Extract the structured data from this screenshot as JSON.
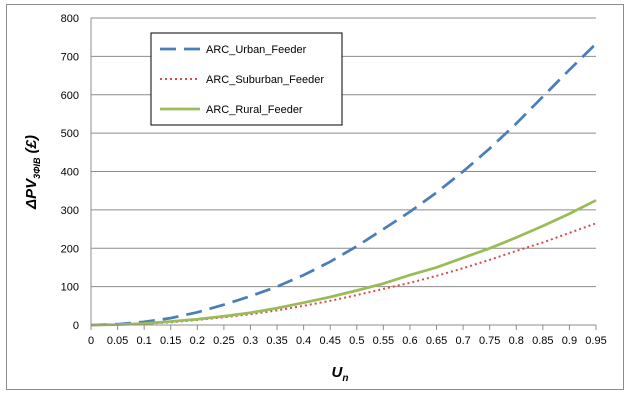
{
  "chart_data": {
    "type": "line",
    "x_ticks": [
      "0",
      "0.05",
      "0.1",
      "0.15",
      "0.2",
      "0.25",
      "0.3",
      "0.35",
      "0.4",
      "0.45",
      "0.5",
      "0.55",
      "0.6",
      "0.65",
      "0.7",
      "0.75",
      "0.8",
      "0.85",
      "0.9",
      "0.95"
    ],
    "y_ticks": [
      "0",
      "100",
      "200",
      "300",
      "400",
      "500",
      "600",
      "700",
      "800"
    ],
    "xlim": [
      0,
      0.95
    ],
    "ylim": [
      0,
      800
    ],
    "grid": "horizontal",
    "legend_position": "top-left",
    "xlabel": "U",
    "xlabel_sub": "n",
    "ylabel_prefix": "ΔPV",
    "ylabel_sub": "3ΦIB",
    "ylabel_suffix": " (£)",
    "series": [
      {
        "name": "ARC_Urban_Feeder",
        "color": "#4a7ebb",
        "style": "dashed",
        "x": [
          0,
          0.05,
          0.1,
          0.15,
          0.2,
          0.25,
          0.3,
          0.35,
          0.4,
          0.45,
          0.5,
          0.55,
          0.6,
          0.65,
          0.7,
          0.75,
          0.8,
          0.85,
          0.9,
          0.95
        ],
        "y": [
          0,
          2,
          8,
          18,
          33,
          53,
          75,
          100,
          130,
          165,
          205,
          250,
          295,
          345,
          400,
          460,
          525,
          595,
          665,
          733
        ]
      },
      {
        "name": "ARC_Suburban_Feeder",
        "color": "#d84b4b",
        "style": "dotted",
        "x": [
          0,
          0.05,
          0.1,
          0.15,
          0.2,
          0.25,
          0.3,
          0.35,
          0.4,
          0.45,
          0.5,
          0.55,
          0.6,
          0.65,
          0.7,
          0.75,
          0.8,
          0.85,
          0.9,
          0.95
        ],
        "y": [
          0,
          1,
          3,
          7,
          13,
          20,
          28,
          38,
          50,
          63,
          78,
          94,
          110,
          128,
          148,
          170,
          193,
          215,
          240,
          265
        ]
      },
      {
        "name": "ARC_Rural_Feeder",
        "color": "#9bbb59",
        "style": "solid",
        "x": [
          0,
          0.05,
          0.1,
          0.15,
          0.2,
          0.25,
          0.3,
          0.35,
          0.4,
          0.45,
          0.5,
          0.55,
          0.6,
          0.65,
          0.7,
          0.75,
          0.8,
          0.85,
          0.9,
          0.95
        ],
        "y": [
          0,
          1,
          4,
          9,
          15,
          23,
          32,
          44,
          58,
          73,
          90,
          108,
          130,
          150,
          175,
          200,
          228,
          258,
          290,
          325
        ]
      }
    ]
  }
}
